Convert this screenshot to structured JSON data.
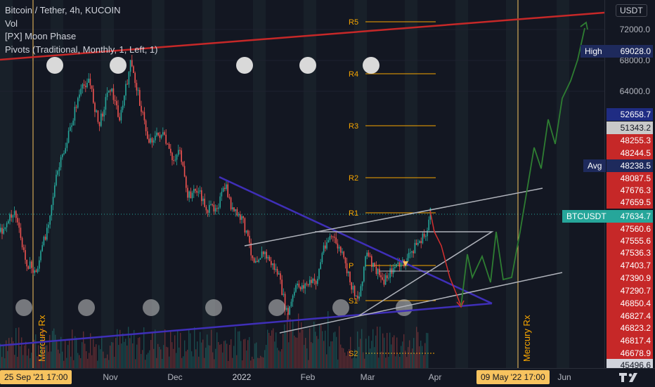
{
  "legend": {
    "symbol": "Bitcoin / Tether, 4h, KUCOIN",
    "vol": "Vol",
    "moon": "[PX] Moon Phase",
    "pivots": "Pivots (Traditional, Monthly, 1, Left, 1)"
  },
  "currency": "USDT",
  "price_ticks": [
    "72000.0",
    "68000.0",
    "64000.0"
  ],
  "price_labels": [
    {
      "text": "69028.0",
      "bg": "#1e2a5c",
      "fg": "#ffffff"
    },
    {
      "text": "52658.7",
      "bg": "#1f2c83",
      "fg": "#ffffff"
    },
    {
      "text": "51343.2",
      "bg": "#c9c9c9",
      "fg": "#131722"
    },
    {
      "text": "48255.3",
      "bg": "#c62828",
      "fg": "#ffffff"
    },
    {
      "text": "48244.5",
      "bg": "#c62828",
      "fg": "#ffffff"
    },
    {
      "text": "48238.5",
      "bg": "#1e2a5c",
      "fg": "#ffffff"
    },
    {
      "text": "48087.5",
      "bg": "#c62828",
      "fg": "#ffffff"
    },
    {
      "text": "47676.3",
      "bg": "#c62828",
      "fg": "#ffffff"
    },
    {
      "text": "47659.5",
      "bg": "#c62828",
      "fg": "#ffffff"
    },
    {
      "text": "47634.7",
      "bg": "#26a69a",
      "fg": "#ffffff"
    },
    {
      "text": "47560.6",
      "bg": "#c62828",
      "fg": "#ffffff"
    },
    {
      "text": "47555.6",
      "bg": "#c62828",
      "fg": "#ffffff"
    },
    {
      "text": "47536.3",
      "bg": "#c62828",
      "fg": "#ffffff"
    },
    {
      "text": "47403.7",
      "bg": "#c62828",
      "fg": "#ffffff"
    },
    {
      "text": "47390.9",
      "bg": "#c62828",
      "fg": "#ffffff"
    },
    {
      "text": "47290.7",
      "bg": "#c62828",
      "fg": "#ffffff"
    },
    {
      "text": "46850.4",
      "bg": "#c62828",
      "fg": "#ffffff"
    },
    {
      "text": "46827.4",
      "bg": "#c62828",
      "fg": "#ffffff"
    },
    {
      "text": "46823.2",
      "bg": "#c62828",
      "fg": "#ffffff"
    },
    {
      "text": "46817.4",
      "bg": "#c62828",
      "fg": "#ffffff"
    },
    {
      "text": "46678.9",
      "bg": "#c62828",
      "fg": "#ffffff"
    },
    {
      "text": "45496.6",
      "bg": "#d1d4dc",
      "fg": "#131722"
    }
  ],
  "side_labels": {
    "high": "High",
    "avg": "Avg",
    "symbol": "BTCUSDT"
  },
  "pivots": [
    "R5",
    "R4",
    "R3",
    "R2",
    "R1",
    "P",
    "S1",
    "S2"
  ],
  "annotations": {
    "mercury_left": "Mercury Rx",
    "mercury_right": "Mercury Rx"
  },
  "time_labels": [
    "Nov",
    "Dec",
    "2022",
    "Feb",
    "Mar",
    "Apr",
    "Jun"
  ],
  "time_boxes": {
    "left": "25 Sep '21   17:00",
    "right": "09 May '22   17:00"
  },
  "colors": {
    "bg": "#131722",
    "up": "#26a69a",
    "down": "#ef5350",
    "pivot": "#f7a600",
    "trend_red": "#c62828",
    "wedge": "#3f2fb8",
    "forecast": "#2e7d32"
  }
}
